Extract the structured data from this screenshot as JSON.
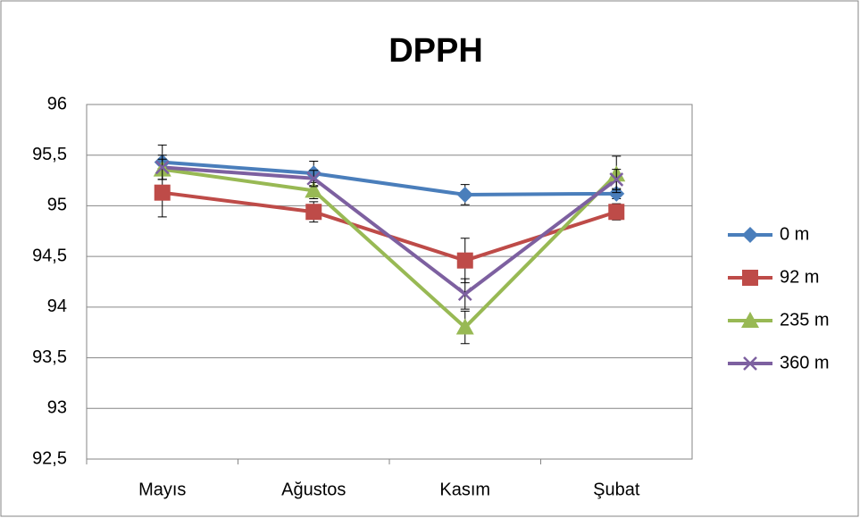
{
  "chart_data": {
    "type": "line",
    "title": "DPPH",
    "categories": [
      "Mayıs",
      "Ağustos",
      "Kasım",
      "Şubat"
    ],
    "series": [
      {
        "name": "0 m",
        "color": "#4a7ebb",
        "marker": "diamond",
        "values": [
          95.43,
          95.32,
          95.11,
          95.12
        ],
        "errors": [
          0.17,
          0.12,
          0.1,
          0.05
        ]
      },
      {
        "name": "92 m",
        "color": "#be4b48",
        "marker": "square",
        "values": [
          95.13,
          94.94,
          94.46,
          94.94
        ],
        "errors": [
          0.24,
          0.1,
          0.22,
          0.08
        ]
      },
      {
        "name": "235 m",
        "color": "#98b954",
        "marker": "triangle",
        "values": [
          95.36,
          95.15,
          93.8,
          95.31
        ],
        "errors": [
          0.1,
          0.08,
          0.16,
          0.18
        ]
      },
      {
        "name": "360 m",
        "color": "#7d60a0",
        "marker": "x",
        "values": [
          95.38,
          95.27,
          94.13,
          95.26
        ],
        "errors": [
          0.12,
          0.08,
          0.15,
          0.1
        ]
      }
    ],
    "ylim": [
      92.5,
      96
    ],
    "yticks": [
      {
        "value": 92.5,
        "label": "92,5"
      },
      93,
      {
        "value": 93.5,
        "label": "93,5"
      },
      94,
      {
        "value": 94.5,
        "label": "94,5"
      },
      95,
      {
        "value": 95.5,
        "label": "95,5"
      },
      96
    ],
    "grid": true,
    "legend": "right"
  }
}
